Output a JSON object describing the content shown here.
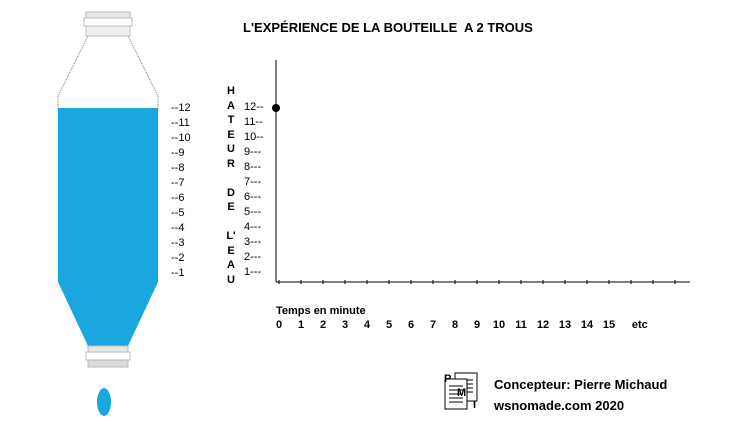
{
  "title": "L'EXPÉRIENCE DE LA BOUTEILLE  A 2 TROUS",
  "bottle_marks": [
    "--12",
    "--11",
    "--10",
    "--9",
    "--8",
    "--7",
    "--6",
    "--5",
    "--4",
    "--3",
    "--2",
    "--1"
  ],
  "vertical_label": [
    "H",
    "A",
    "T",
    "E",
    "U",
    "R",
    "",
    "D",
    "E",
    "",
    "L'",
    "E",
    "A",
    "U"
  ],
  "y_labels": [
    "12--",
    "11--",
    "10--",
    "9---",
    "8---",
    "7---",
    "6---",
    "5---",
    "4---",
    "3---",
    "2---",
    "1---"
  ],
  "x_axis_label": "Temps en minute",
  "x_ticks": [
    "0",
    "1",
    "2",
    "3",
    "4",
    "5",
    "6",
    "7",
    "8",
    "9",
    "10",
    "11",
    "12",
    "13",
    "14",
    "15",
    "etc"
  ],
  "chart_data": {
    "type": "scatter",
    "xlabel": "Temps en minute",
    "ylabel": "HATEUR DE L'EAU",
    "x_ticks": [
      "0",
      "1",
      "2",
      "3",
      "4",
      "5",
      "6",
      "7",
      "8",
      "9",
      "10",
      "11",
      "12",
      "13",
      "14",
      "15",
      "etc"
    ],
    "y_ticks": [
      12,
      11,
      10,
      9,
      8,
      7,
      6,
      5,
      4,
      3,
      2,
      1
    ],
    "points": [
      {
        "x": 0,
        "y": 12
      }
    ]
  },
  "colors": {
    "water": "#1aa7e0",
    "bottle_outline": "#a0a0a0",
    "axis": "#000000"
  },
  "logo_letters": [
    "P",
    "M",
    "I"
  ],
  "credits": {
    "designer": "Concepteur: Pierre Michaud",
    "site": "wsnomade.com 2020"
  }
}
